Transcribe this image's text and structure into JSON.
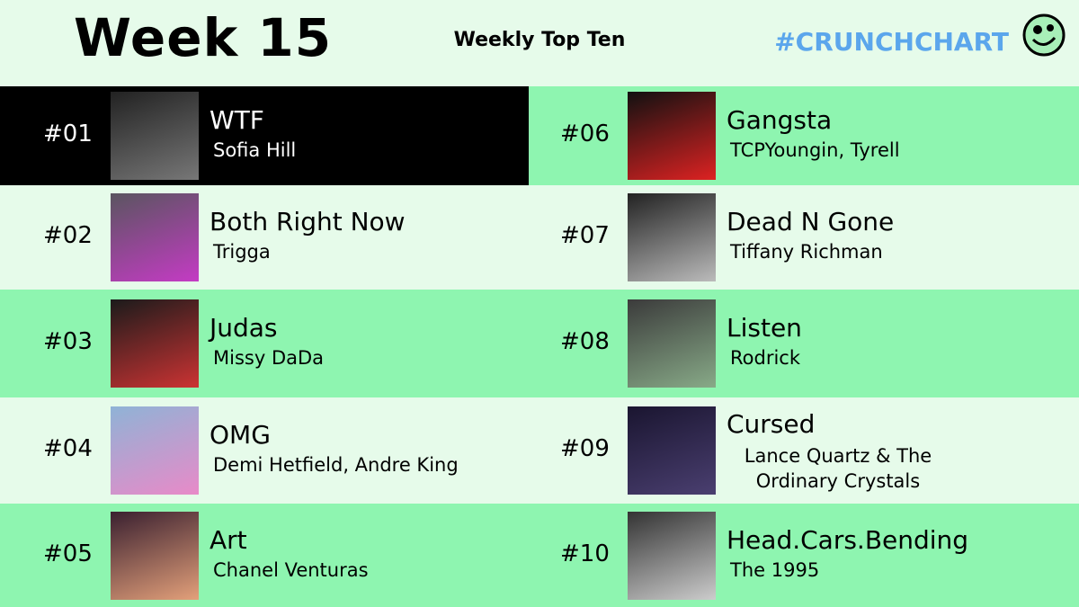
{
  "header": {
    "week": "Week 15",
    "subtitle": "Weekly Top Ten",
    "hashtag": "#CRUNCHCHART"
  },
  "entries": [
    {
      "rank": "#01",
      "title": "WTF",
      "artist": "Sofia Hill"
    },
    {
      "rank": "#02",
      "title": "Both Right Now",
      "artist": "Trigga"
    },
    {
      "rank": "#03",
      "title": "Judas",
      "artist": "Missy DaDa"
    },
    {
      "rank": "#04",
      "title": "OMG",
      "artist": "Demi Hetfield, Andre King"
    },
    {
      "rank": "#05",
      "title": "Art",
      "artist": "Chanel Venturas"
    },
    {
      "rank": "#06",
      "title": "Gangsta",
      "artist": "TCPYoungin, Tyrell"
    },
    {
      "rank": "#07",
      "title": "Dead N Gone",
      "artist": "Tiffany Richman"
    },
    {
      "rank": "#08",
      "title": "Listen",
      "artist": "Rodrick"
    },
    {
      "rank": "#09",
      "title": "Cursed",
      "artist": "Lance Quartz & The Ordinary Crystals"
    },
    {
      "rank": "#10",
      "title": "Head.Cars.Bending",
      "artist": "The 1995"
    }
  ]
}
